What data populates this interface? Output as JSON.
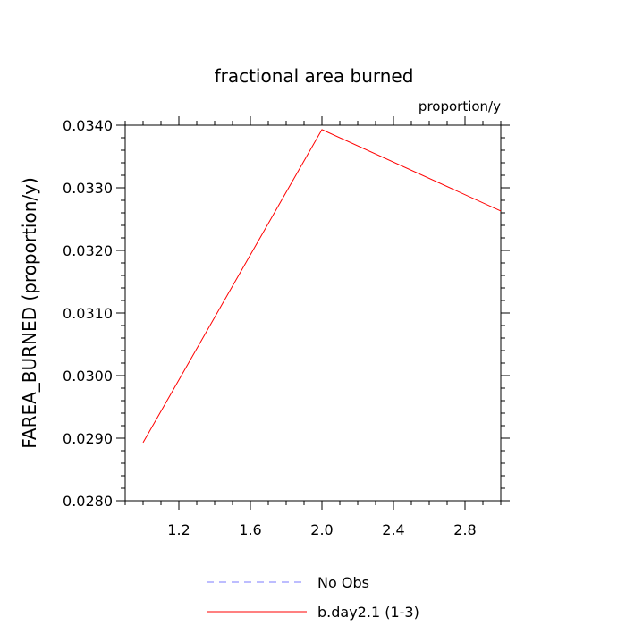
{
  "chart_data": {
    "type": "line",
    "title": "fractional area burned",
    "units_label": "proportion/y",
    "ylabel": "FAREA_BURNED  (proportion/y)",
    "xlabel": "",
    "xlim": [
      0.9,
      3.0
    ],
    "ylim": [
      0.028,
      0.034
    ],
    "x_ticks": [
      1.2,
      1.6,
      2.0,
      2.4,
      2.8
    ],
    "x_tick_labels": [
      "1.2",
      "1.6",
      "2.0",
      "2.4",
      "2.8"
    ],
    "x_minor_step": 0.1,
    "y_ticks": [
      0.028,
      0.029,
      0.03,
      0.031,
      0.032,
      0.033,
      0.034
    ],
    "y_tick_labels": [
      "0.0280",
      "0.0290",
      "0.0300",
      "0.0310",
      "0.0320",
      "0.0330",
      "0.0340"
    ],
    "y_minor_step": 0.0002,
    "grid": false,
    "legend_position": "bottom",
    "series": [
      {
        "name": "b.day2.1 (1-3)",
        "color": "#ff0000",
        "dash": "solid",
        "x": [
          1.0,
          2.0,
          3.0
        ],
        "y": [
          0.02893,
          0.03393,
          0.03263
        ]
      }
    ],
    "legend": [
      {
        "label": "No Obs",
        "color": "#7b7bff",
        "dash": "dashed"
      },
      {
        "label": "b.day2.1 (1-3)",
        "color": "#ff0000",
        "dash": "solid"
      }
    ]
  }
}
